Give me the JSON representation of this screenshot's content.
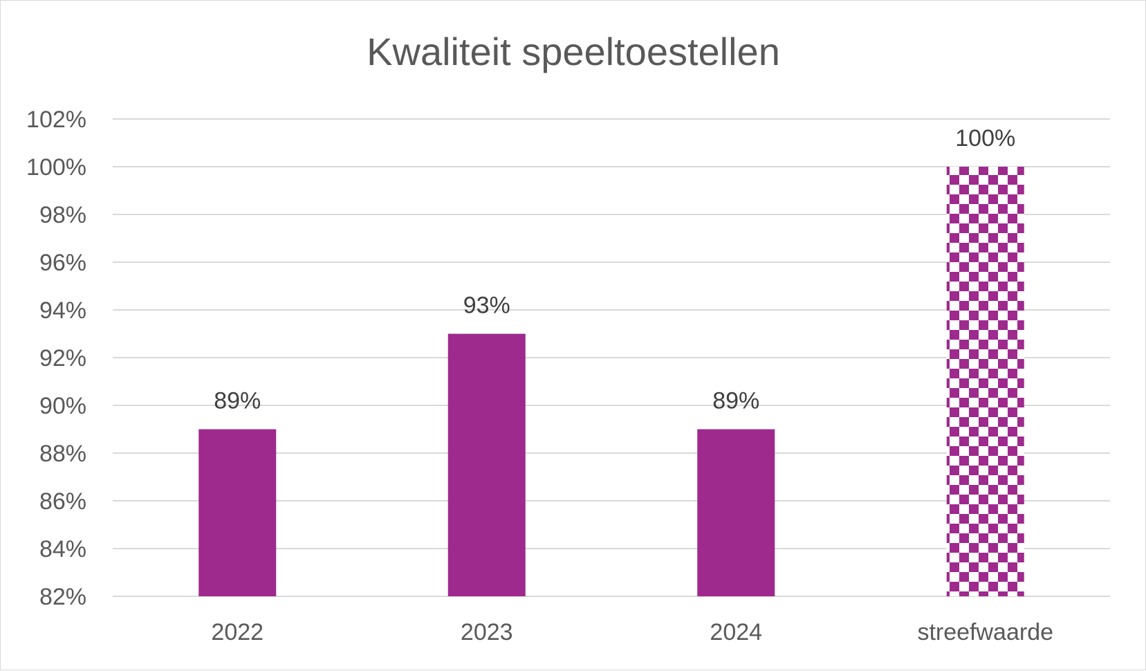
{
  "chart_data": {
    "type": "bar",
    "title": "Kwaliteit speeltoestellen",
    "xlabel": "",
    "ylabel": "",
    "categories": [
      "2022",
      "2023",
      "2024",
      "streefwaarde"
    ],
    "values": [
      89,
      93,
      89,
      100
    ],
    "data_labels": [
      "89%",
      "93%",
      "89%",
      "100%"
    ],
    "ylim": [
      82,
      102
    ],
    "y_ticks": [
      82,
      84,
      86,
      88,
      90,
      92,
      94,
      96,
      98,
      100,
      102
    ],
    "y_tick_labels": [
      "82%",
      "84%",
      "86%",
      "88%",
      "90%",
      "92%",
      "94%",
      "96%",
      "98%",
      "100%",
      "102%"
    ],
    "grid": true,
    "legend": "none",
    "bar_color": "#9e2a8e",
    "bar_fill_styles": [
      "solid",
      "solid",
      "solid",
      "checkerboard"
    ]
  }
}
